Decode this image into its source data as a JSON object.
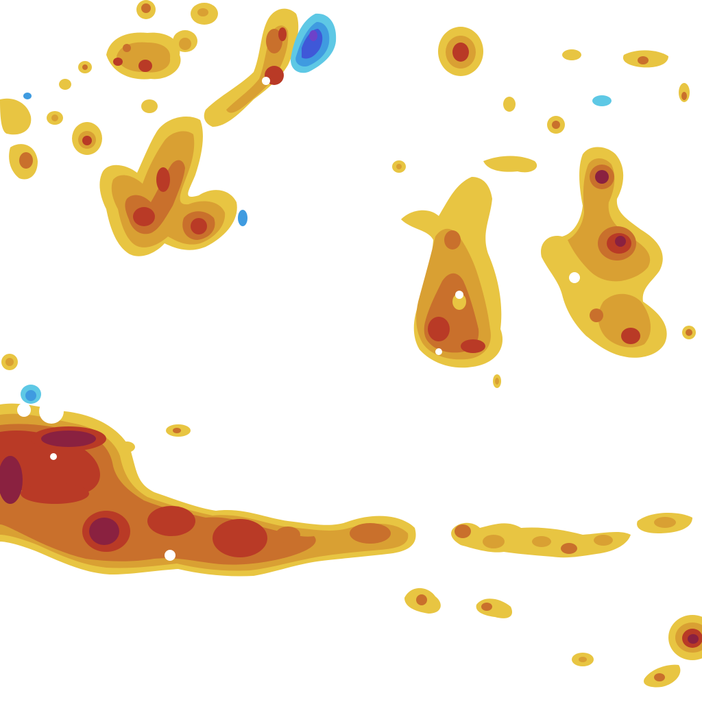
{
  "map": {
    "background": "#ffffff",
    "palette": {
      "level1": "#e8c542",
      "level2": "#d9a033",
      "level3": "#c9702c",
      "level4": "#b93a26",
      "level5": "#8a2140",
      "cold1": "#5ec8e5",
      "cold2": "#3f9be0",
      "cold3": "#3f58d8"
    },
    "landmasses": [
      {
        "name": "northwest-islands"
      },
      {
        "name": "north-central-island"
      },
      {
        "name": "central-island-west"
      },
      {
        "name": "central-island-east"
      },
      {
        "name": "main-southern-island"
      },
      {
        "name": "southern-island-chain"
      },
      {
        "name": "southeast-islands"
      }
    ]
  }
}
